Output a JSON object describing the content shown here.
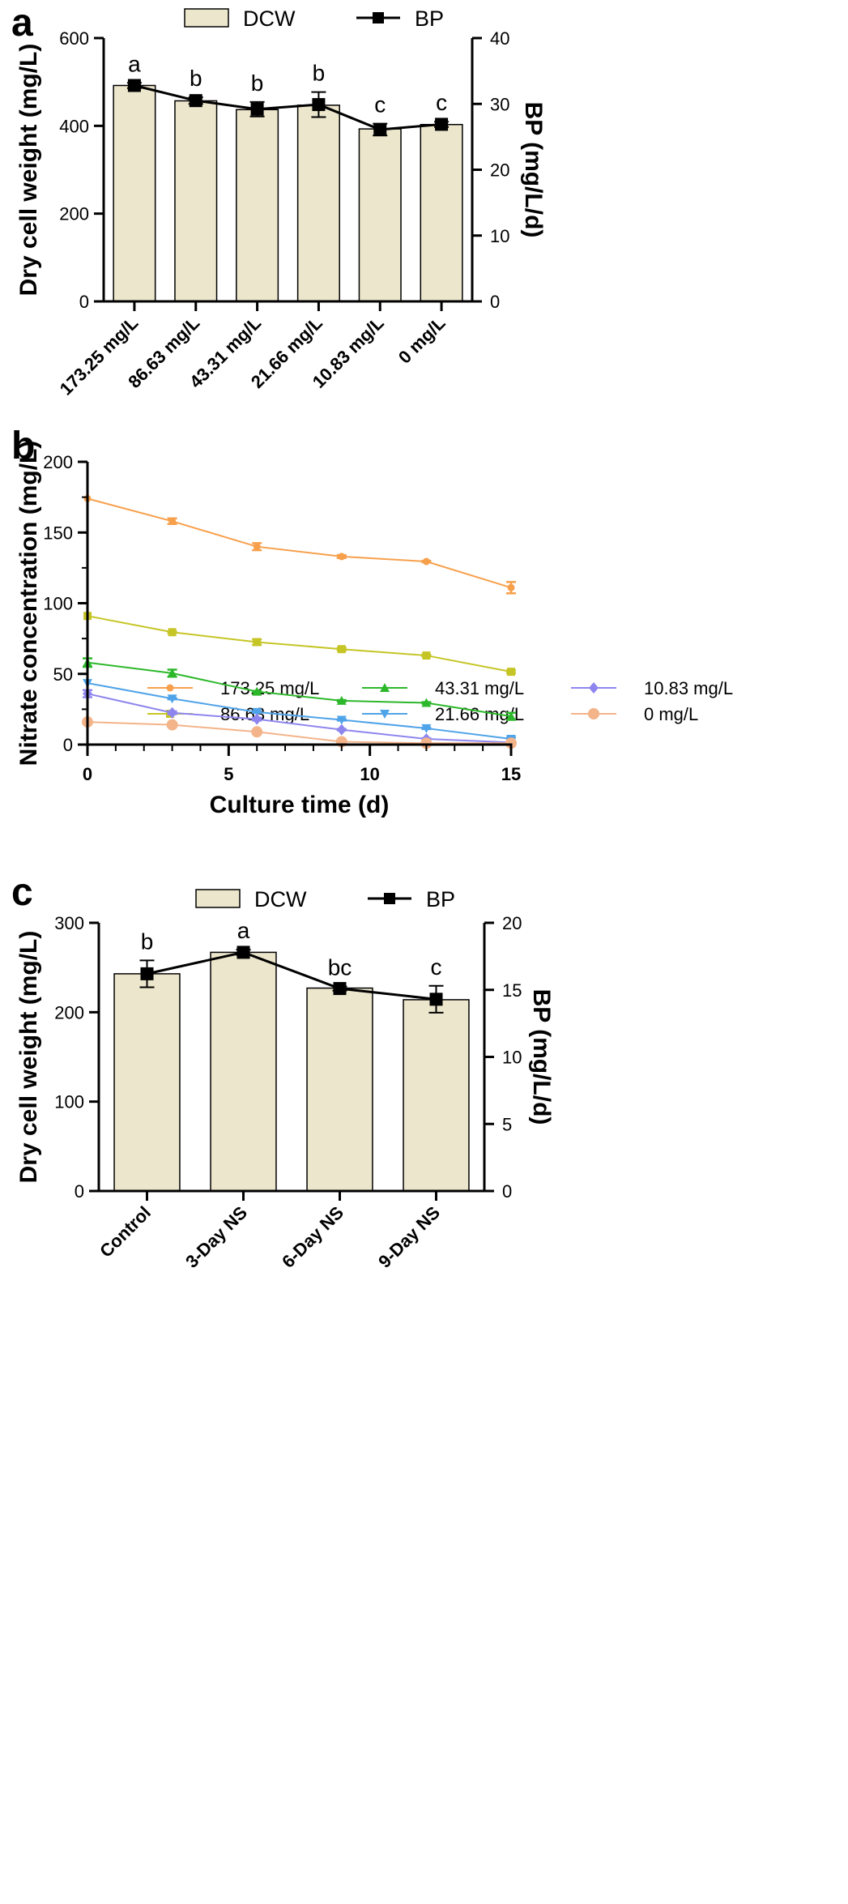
{
  "chart_data": [
    {
      "panel": "a",
      "type": "bar",
      "legend": [
        "DCW",
        "BP"
      ],
      "categories": [
        "173.25 mg/L",
        "86.63 mg/L",
        "43.31 mg/L",
        "21.66 mg/L",
        "10.83 mg/L",
        "0 mg/L"
      ],
      "ylabel": "Dry cell weight (mg/L)",
      "y2label": "BP (mg/L/d)",
      "ylim": [
        0,
        600
      ],
      "yticks": [
        0,
        200,
        400,
        600
      ],
      "y2lim": [
        0,
        40
      ],
      "y2ticks": [
        0,
        10,
        20,
        30,
        40
      ],
      "series": [
        {
          "name": "DCW",
          "type": "bar",
          "axis": "left",
          "values": [
            492,
            457,
            437,
            447,
            393,
            403
          ]
        },
        {
          "name": "BP",
          "type": "line",
          "axis": "right",
          "values": [
            32.8,
            30.5,
            29.2,
            29.9,
            26.1,
            26.9
          ],
          "errors": [
            0.4,
            0.5,
            1.1,
            1.9,
            0.9,
            0.4
          ]
        }
      ],
      "significance": [
        "a",
        "b",
        "b",
        "b",
        "c",
        "c"
      ],
      "colors": {
        "bar": "#ece6cc",
        "line": "#000000"
      }
    },
    {
      "panel": "b",
      "type": "line",
      "xlabel": "Culture time (d)",
      "ylabel": "Nitrate concentration (mg/L)",
      "x": [
        0,
        3,
        6,
        9,
        12,
        15
      ],
      "xlim": [
        0,
        15
      ],
      "xticks": [
        0,
        5,
        10,
        15
      ],
      "ylim": [
        0,
        200
      ],
      "yticks": [
        0,
        50,
        100,
        150,
        200
      ],
      "series": [
        {
          "name": "173.25 mg/L",
          "marker": "circle",
          "color": "#f7a04c",
          "values": [
            174,
            158,
            140,
            133,
            129.5,
            111
          ],
          "errors": [
            0,
            2,
            2.5,
            1,
            0.5,
            4
          ]
        },
        {
          "name": "86.63 mg/L",
          "marker": "square",
          "color": "#c6c526",
          "values": [
            91,
            79.5,
            72.5,
            67.5,
            63,
            51.5
          ],
          "errors": [
            0,
            0.5,
            2,
            1,
            0.5,
            1
          ]
        },
        {
          "name": "43.31 mg/L",
          "marker": "triangle-up",
          "color": "#2db82b",
          "values": [
            58,
            50.5,
            37.5,
            31,
            29.5,
            20
          ],
          "errors": [
            3,
            2.5,
            0.5,
            0.5,
            0.5,
            2.5
          ]
        },
        {
          "name": "21.66 mg/L",
          "marker": "triangle-down",
          "color": "#4fa3e8",
          "values": [
            43.5,
            32.5,
            23,
            17.5,
            11.5,
            4
          ],
          "errors": [
            0,
            0.5,
            0.5,
            0.5,
            0.5,
            1
          ]
        },
        {
          "name": "10.83 mg/L",
          "marker": "diamond",
          "color": "#8e86ee",
          "values": [
            36,
            22.5,
            18,
            10.5,
            4,
            1.5
          ],
          "errors": [
            2.5,
            1,
            1,
            0.5,
            0.5,
            0.5
          ]
        },
        {
          "name": "0 mg/L",
          "marker": "circle-large",
          "color": "#f3b48a",
          "values": [
            16,
            14,
            9,
            2,
            1,
            1
          ],
          "errors": [
            0,
            0.5,
            0.5,
            0,
            0,
            0
          ]
        }
      ]
    },
    {
      "panel": "c",
      "type": "bar",
      "legend": [
        "DCW",
        "BP"
      ],
      "categories": [
        "Control",
        "3-Day NS",
        "6-Day NS",
        "9-Day NS"
      ],
      "ylabel": "Dry cell weight (mg/L)",
      "y2label": "BP (mg/L/d)",
      "ylim": [
        0,
        300
      ],
      "yticks": [
        0,
        100,
        200,
        300
      ],
      "y2lim": [
        0,
        20
      ],
      "y2ticks": [
        0,
        5,
        10,
        15,
        20
      ],
      "series": [
        {
          "name": "DCW",
          "type": "bar",
          "axis": "left",
          "values": [
            243,
            267,
            227,
            214
          ]
        },
        {
          "name": "BP",
          "type": "line",
          "axis": "right",
          "values": [
            16.2,
            17.8,
            15.1,
            14.3
          ],
          "errors": [
            1.0,
            0.2,
            0.15,
            1.0
          ]
        }
      ],
      "significance": [
        "b",
        "a",
        "bc",
        "c"
      ],
      "colors": {
        "bar": "#ece6cc",
        "line": "#000000"
      }
    }
  ]
}
